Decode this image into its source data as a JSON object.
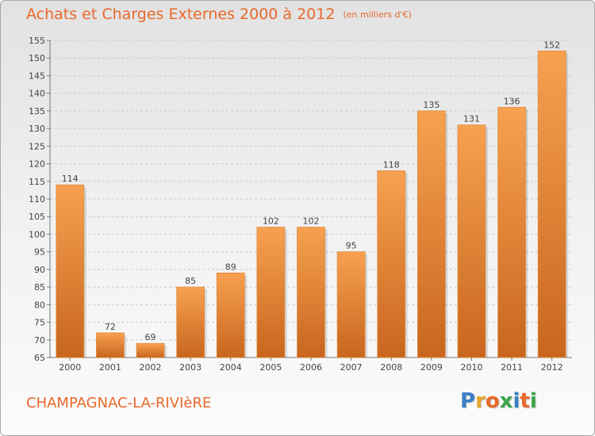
{
  "title": "Achats et Charges Externes 2000 à 2012",
  "subtitle": "(en milliers d'€)",
  "commune": "CHAMPAGNAC-LA-RIVIèRE",
  "logo": {
    "letters": [
      "P",
      "r",
      "o",
      "x",
      "i",
      "t",
      "i"
    ],
    "colors": [
      "#3a7fc4",
      "#e8a52a",
      "#e8682a",
      "#3aa64a",
      "#3a7fc4",
      "#e8682a",
      "#3aa64a"
    ]
  },
  "chart_data": {
    "type": "bar",
    "title": "Achats et Charges Externes 2000 à 2012",
    "subtitle": "(en milliers d'€)",
    "xlabel": "",
    "ylabel": "",
    "categories": [
      "2000",
      "2001",
      "2002",
      "2003",
      "2004",
      "2005",
      "2006",
      "2007",
      "2008",
      "2009",
      "2010",
      "2011",
      "2012"
    ],
    "values": [
      114,
      72,
      69,
      85,
      89,
      102,
      102,
      95,
      118,
      135,
      131,
      136,
      152
    ],
    "data_labels": [
      "114",
      "72",
      "69",
      "85",
      "89",
      "102",
      "102",
      "95",
      "118",
      "135",
      "131",
      "136",
      "152"
    ],
    "ylim": [
      65,
      155
    ],
    "yticks": [
      "65",
      "70",
      "75",
      "80",
      "85",
      "90",
      "95",
      "100",
      "105",
      "110",
      "115",
      "120",
      "125",
      "130",
      "135",
      "140",
      "145",
      "150",
      "155"
    ],
    "grid": true,
    "legend": "none",
    "bar_color_top": "#f7a150",
    "bar_color_bottom": "#c8661e"
  }
}
